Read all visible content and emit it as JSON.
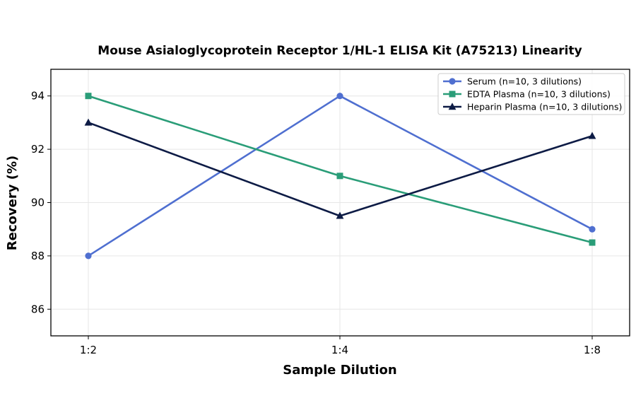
{
  "chart_data": {
    "type": "line",
    "title": "Mouse Asialoglycoprotein Receptor 1/HL-1 ELISA Kit (A75213) Linearity",
    "xlabel": "Sample Dilution",
    "ylabel": "Recovery (%)",
    "categories": [
      "1:2",
      "1:4",
      "1:8"
    ],
    "ylim": [
      85,
      95
    ],
    "yticks": [
      86,
      88,
      90,
      92,
      94
    ],
    "grid": true,
    "legend_position": "top-right",
    "series": [
      {
        "name": "Serum (n=10, 3 dilutions)",
        "values": [
          88,
          94,
          89
        ],
        "color": "#4F6FD0",
        "marker": "circle"
      },
      {
        "name": "EDTA Plasma (n=10, 3 dilutions)",
        "values": [
          94,
          91,
          88.5
        ],
        "color": "#2A9D78",
        "marker": "square"
      },
      {
        "name": "Heparin Plasma (n=10, 3 dilutions)",
        "values": [
          93,
          89.5,
          92.5
        ],
        "color": "#0D1B45",
        "marker": "triangle"
      }
    ]
  }
}
